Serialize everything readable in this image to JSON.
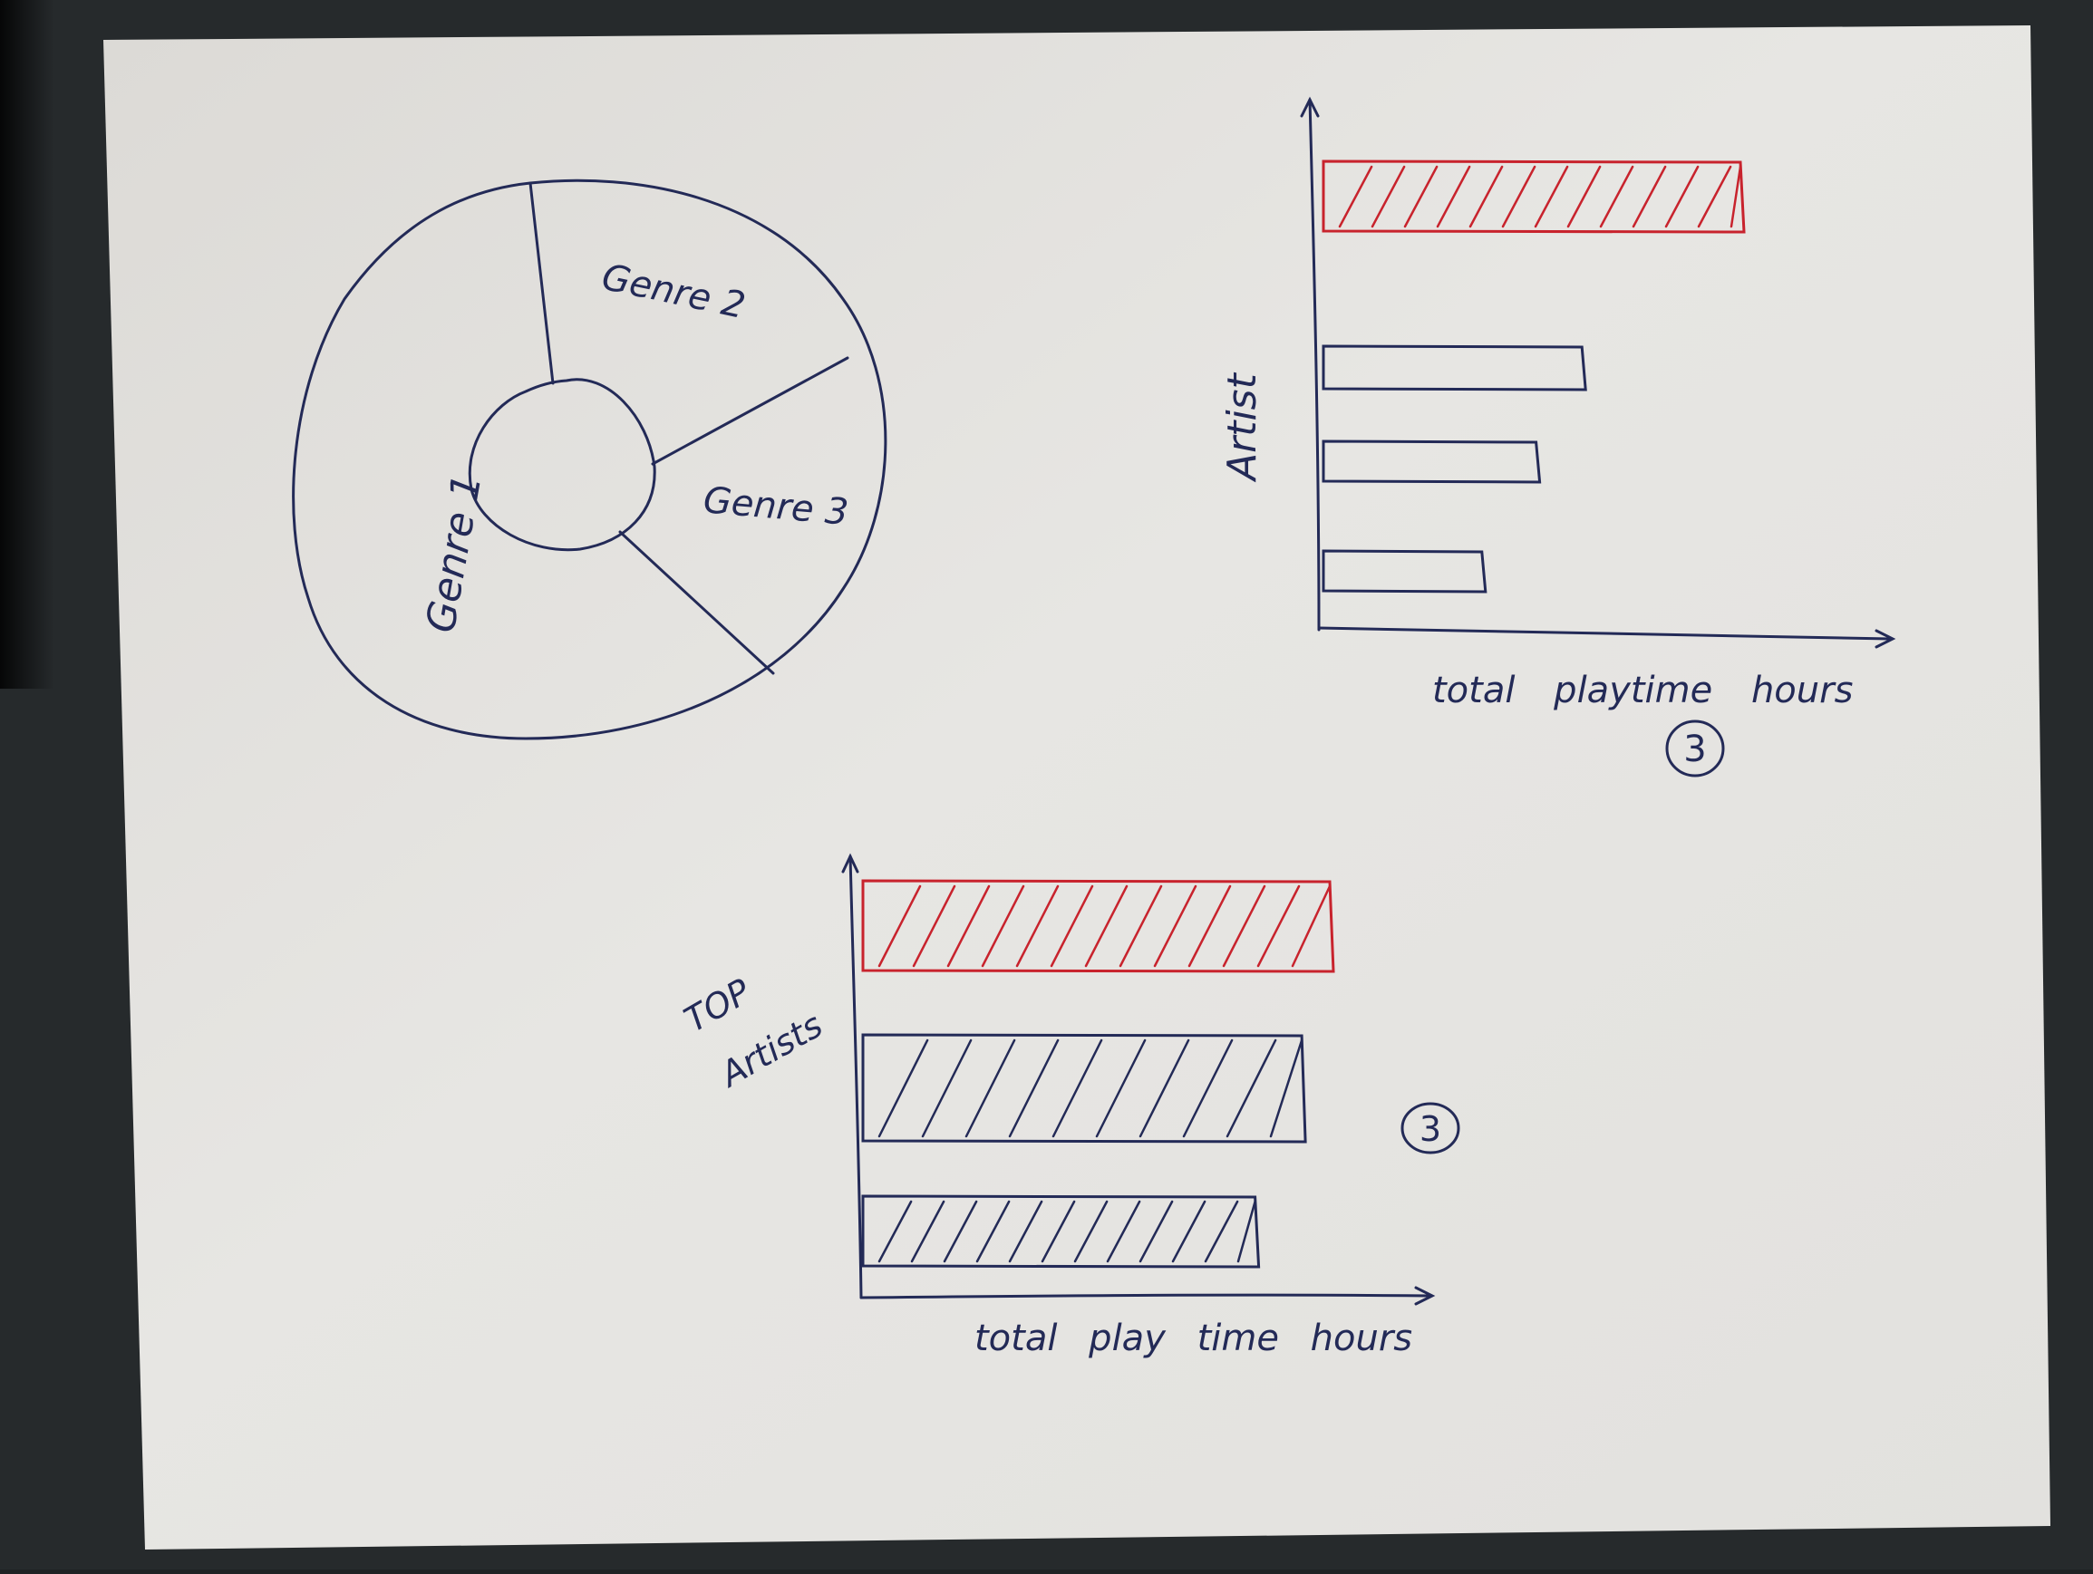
{
  "colors": {
    "background": "#1f2224",
    "paper": "#e6e5e3",
    "ink": "#232a57",
    "accent_ink": "#c8232d"
  },
  "donut": {
    "segment_labels": [
      "Genre 1",
      "Genre 2",
      "Genre 3"
    ]
  },
  "chart_top_right": {
    "y_label": "Artist",
    "x_label": "total playtime hours",
    "page_number": "3"
  },
  "chart_bottom": {
    "y_label_line1": "TOP",
    "y_label_line2": "Artists",
    "x_label": "total play time hours",
    "page_number": "3"
  },
  "chart_data": [
    {
      "type": "pie",
      "donut": true,
      "labels": [
        "Genre 1",
        "Genre 2",
        "Genre 3"
      ],
      "values": [
        52,
        25,
        23
      ],
      "title": "",
      "xlabel": "",
      "ylabel": ""
    },
    {
      "type": "bar",
      "orientation": "horizontal",
      "xlabel": "total playtime hours",
      "ylabel": "Artist",
      "values": [
        100,
        62,
        51,
        38
      ],
      "highlight_index": 0,
      "highlight_color": "#c8232d"
    },
    {
      "type": "bar",
      "orientation": "horizontal",
      "xlabel": "total play time hours",
      "ylabel": "TOP Artists",
      "values": [
        100,
        94,
        84
      ],
      "highlight_index": 0,
      "highlight_color": "#c8232d"
    }
  ]
}
